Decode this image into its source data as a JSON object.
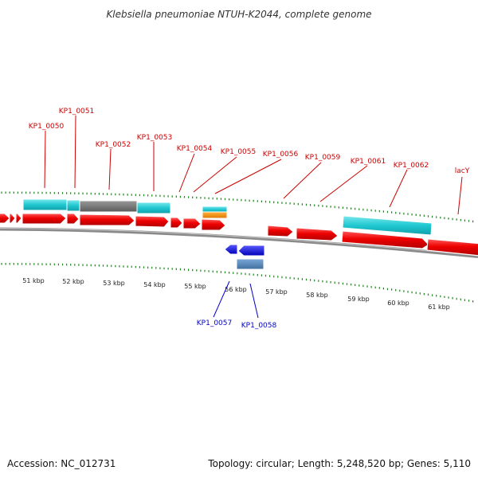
{
  "title": "Klebsiella pneumoniae NTUH-K2044, complete genome",
  "footer": {
    "accession": "Accession: NC_012731",
    "topology": "Topology: circular; Length: 5,248,520 bp; Genes: 5,110"
  },
  "colors": {
    "forward_gene": "#ee0000",
    "reverse_gene": "#1010dd",
    "cds_feature": "#20c8d0",
    "grey_feature": "#6e6e6e",
    "orange_feature": "#f08c00",
    "steel_feature": "#5080b0",
    "backbone": "#8a8a8a",
    "tick": "#1a8a1a",
    "label_forward": "#cc0000",
    "label_reverse": "#0000cc"
  },
  "kbp_labels": [
    "51 kbp",
    "52 kbp",
    "53 kbp",
    "54 kbp",
    "55 kbp",
    "56 kbp",
    "57 kbp",
    "58 kbp",
    "59 kbp",
    "60 kbp",
    "61 kbp"
  ],
  "forward_labels": [
    "KP1_0050",
    "KP1_0051",
    "KP1_0052",
    "KP1_0053",
    "KP1_0054",
    "KP1_0055",
    "KP1_0056",
    "KP1_0059",
    "KP1_0061",
    "KP1_0062",
    "lacY"
  ],
  "reverse_labels": [
    "KP1_0057",
    "KP1_0058"
  ]
}
